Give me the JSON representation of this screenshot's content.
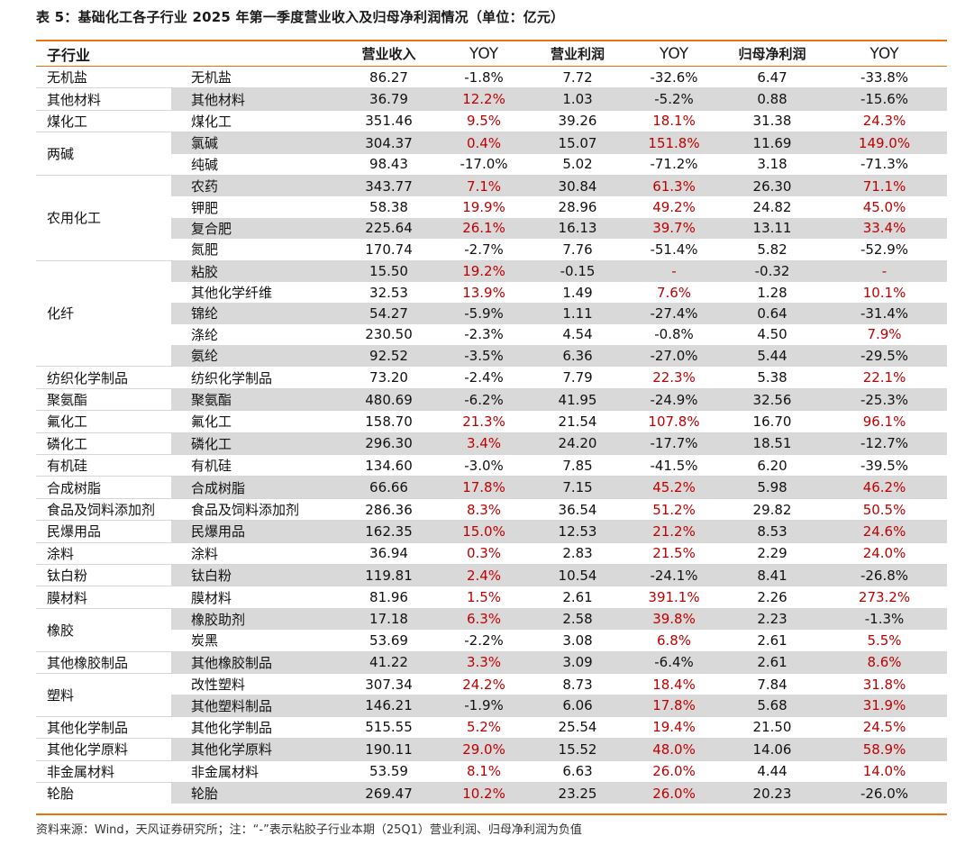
{
  "title": "表 5：基础化工各子行业 2025 年第一季度营业收入及归母净利润情况（单位：亿元）",
  "header": {
    "industry": "子行业",
    "revenue": "营业收入",
    "revenue_yoy": "YOY",
    "op_profit": "营业利润",
    "op_profit_yoy": "YOY",
    "net_profit": "归母净利润",
    "net_profit_yoy": "YOY"
  },
  "groups": [
    {
      "name": "无机盐",
      "rows": [
        [
          "无机盐",
          "86.27",
          "-1.8%",
          "7.72",
          "-32.6%",
          "6.47",
          "-33.8%"
        ]
      ]
    },
    {
      "name": "其他材料",
      "rows": [
        [
          "其他材料",
          "36.79",
          "12.2%",
          "1.03",
          "-5.2%",
          "0.88",
          "-15.6%"
        ]
      ]
    },
    {
      "name": "煤化工",
      "rows": [
        [
          "煤化工",
          "351.46",
          "9.5%",
          "39.26",
          "18.1%",
          "31.38",
          "24.3%"
        ]
      ]
    },
    {
      "name": "两碱",
      "rows": [
        [
          "氯碱",
          "304.37",
          "0.4%",
          "15.07",
          "151.8%",
          "11.69",
          "149.0%"
        ],
        [
          "纯碱",
          "98.43",
          "-17.0%",
          "5.02",
          "-71.2%",
          "3.18",
          "-71.3%"
        ]
      ]
    },
    {
      "name": "农用化工",
      "rows": [
        [
          "农药",
          "343.77",
          "7.1%",
          "30.84",
          "61.3%",
          "26.30",
          "71.1%"
        ],
        [
          "钾肥",
          "58.38",
          "19.9%",
          "28.96",
          "49.2%",
          "24.82",
          "45.0%"
        ],
        [
          "复合肥",
          "225.64",
          "26.1%",
          "16.13",
          "39.7%",
          "13.11",
          "33.4%"
        ],
        [
          "氮肥",
          "170.74",
          "-2.7%",
          "7.76",
          "-51.4%",
          "5.82",
          "-52.9%"
        ]
      ]
    },
    {
      "name": "化纤",
      "rows": [
        [
          "粘胶",
          "15.50",
          "19.2%",
          "-0.15",
          "-",
          "-0.32",
          "-"
        ],
        [
          "其他化学纤维",
          "32.53",
          "13.9%",
          "1.49",
          "7.6%",
          "1.28",
          "10.1%"
        ],
        [
          "锦纶",
          "54.27",
          "-5.9%",
          "1.11",
          "-27.4%",
          "0.64",
          "-31.4%"
        ],
        [
          "涤纶",
          "230.50",
          "-2.3%",
          "4.54",
          "-0.8%",
          "4.50",
          "7.9%"
        ],
        [
          "氨纶",
          "92.52",
          "-3.5%",
          "6.36",
          "-27.0%",
          "5.44",
          "-29.5%"
        ]
      ]
    },
    {
      "name": "纺织化学制品",
      "rows": [
        [
          "纺织化学制品",
          "73.20",
          "-2.4%",
          "7.79",
          "22.3%",
          "5.38",
          "22.1%"
        ]
      ]
    },
    {
      "name": "聚氨酯",
      "rows": [
        [
          "聚氨酯",
          "480.69",
          "-6.2%",
          "41.95",
          "-24.9%",
          "32.56",
          "-25.3%"
        ]
      ]
    },
    {
      "name": "氟化工",
      "rows": [
        [
          "氟化工",
          "158.70",
          "21.3%",
          "21.54",
          "107.8%",
          "16.70",
          "96.1%"
        ]
      ]
    },
    {
      "name": "磷化工",
      "rows": [
        [
          "磷化工",
          "296.30",
          "3.4%",
          "24.20",
          "-17.7%",
          "18.51",
          "-12.7%"
        ]
      ]
    },
    {
      "name": "有机硅",
      "rows": [
        [
          "有机硅",
          "134.60",
          "-3.0%",
          "7.85",
          "-41.5%",
          "6.20",
          "-39.5%"
        ]
      ]
    },
    {
      "name": "合成树脂",
      "rows": [
        [
          "合成树脂",
          "66.66",
          "17.8%",
          "7.15",
          "45.2%",
          "5.98",
          "46.2%"
        ]
      ]
    },
    {
      "name": "食品及饲料添加剂",
      "rows": [
        [
          "食品及饲料添加剂",
          "286.36",
          "8.3%",
          "36.54",
          "51.2%",
          "29.82",
          "50.5%"
        ]
      ]
    },
    {
      "name": "民爆用品",
      "rows": [
        [
          "民爆用品",
          "162.35",
          "15.0%",
          "12.53",
          "21.2%",
          "8.53",
          "24.6%"
        ]
      ]
    },
    {
      "name": "涂料",
      "rows": [
        [
          "涂料",
          "36.94",
          "0.3%",
          "2.83",
          "21.5%",
          "2.29",
          "24.0%"
        ]
      ]
    },
    {
      "name": "钛白粉",
      "rows": [
        [
          "钛白粉",
          "119.81",
          "2.4%",
          "10.54",
          "-24.1%",
          "8.41",
          "-26.8%"
        ]
      ]
    },
    {
      "name": "膜材料",
      "rows": [
        [
          "膜材料",
          "81.96",
          "1.5%",
          "2.61",
          "391.1%",
          "2.26",
          "273.2%"
        ]
      ]
    },
    {
      "name": "橡胶",
      "rows": [
        [
          "橡胶助剂",
          "17.18",
          "6.3%",
          "2.58",
          "39.8%",
          "2.23",
          "-1.3%"
        ],
        [
          "炭黑",
          "53.69",
          "-2.2%",
          "3.08",
          "6.8%",
          "2.61",
          "5.5%"
        ]
      ]
    },
    {
      "name": "其他橡胶制品",
      "rows": [
        [
          "其他橡胶制品",
          "41.22",
          "3.3%",
          "3.09",
          "-6.4%",
          "2.61",
          "8.6%"
        ]
      ]
    },
    {
      "name": "塑料",
      "rows": [
        [
          "改性塑料",
          "307.34",
          "24.2%",
          "8.73",
          "18.4%",
          "7.84",
          "31.8%"
        ],
        [
          "其他塑料制品",
          "146.21",
          "-1.9%",
          "6.06",
          "17.8%",
          "5.68",
          "31.9%"
        ]
      ]
    },
    {
      "name": "其他化学制品",
      "rows": [
        [
          "其他化学制品",
          "515.55",
          "5.2%",
          "25.54",
          "19.4%",
          "21.50",
          "24.5%"
        ]
      ]
    },
    {
      "name": "其他化学原料",
      "rows": [
        [
          "其他化学原料",
          "190.11",
          "29.0%",
          "15.52",
          "48.0%",
          "14.06",
          "58.9%"
        ]
      ]
    },
    {
      "name": "非金属材料",
      "rows": [
        [
          "非金属材料",
          "53.59",
          "8.1%",
          "6.63",
          "26.0%",
          "4.44",
          "14.0%"
        ]
      ]
    },
    {
      "name": "轮胎",
      "rows": [
        [
          "轮胎",
          "269.47",
          "10.2%",
          "23.25",
          "26.0%",
          "20.23",
          "-26.0%"
        ]
      ]
    }
  ],
  "footer": "资料来源：Wind，天风证券研究所；注：“-”表示粘胶子行业本期（25Q1）营业利润、归母净利润为负值",
  "colors": {
    "accent_rule": "#e8720c",
    "positive_text": "#c00000",
    "shade": "#d9d9d9"
  }
}
